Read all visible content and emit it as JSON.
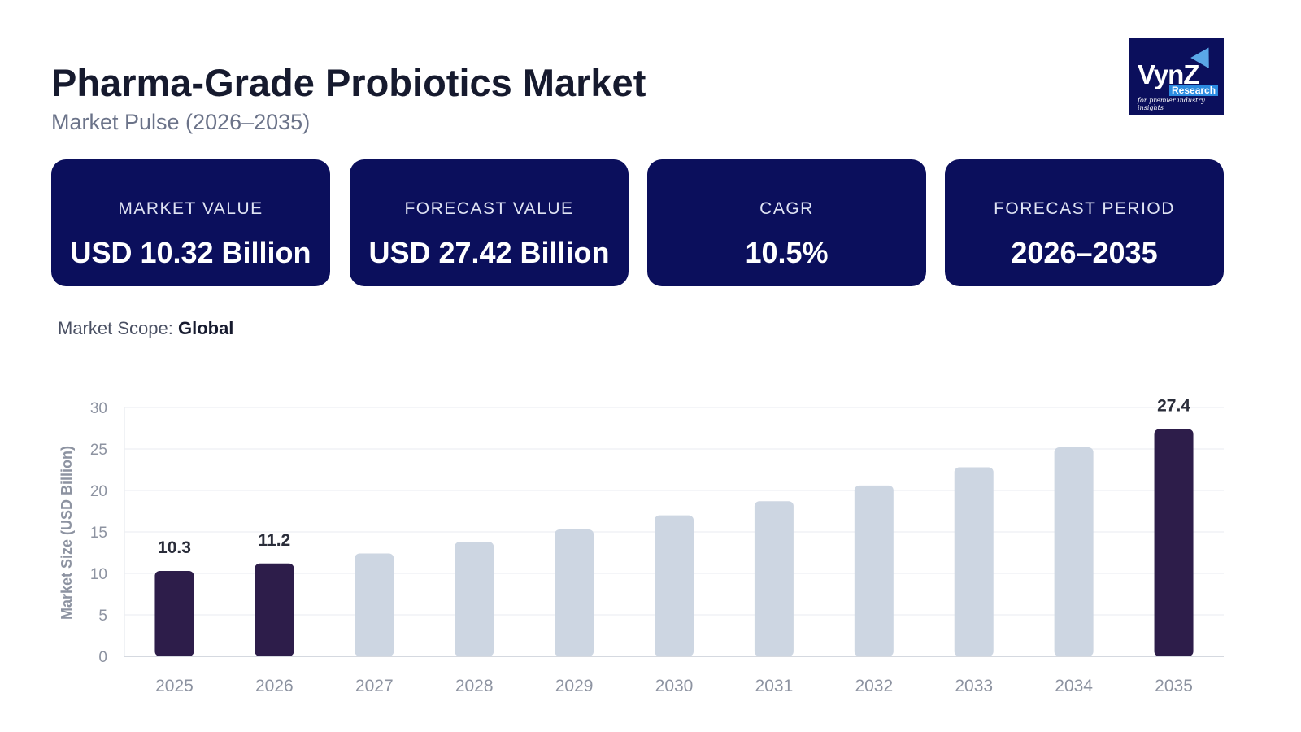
{
  "header": {
    "title": "Pharma-Grade Probiotics Market",
    "subtitle": "Market Pulse (2026–2035)"
  },
  "logo": {
    "text": "VynZ",
    "sub": "Research",
    "tagline": "for premier industry insights"
  },
  "cards": [
    {
      "label": "MARKET VALUE",
      "value": "USD 10.32 Billion"
    },
    {
      "label": "FORECAST VALUE",
      "value": "USD 27.42 Billion"
    },
    {
      "label": "CAGR",
      "value": "10.5%"
    },
    {
      "label": "FORECAST PERIOD",
      "value": "2026–2035"
    }
  ],
  "scope": {
    "label": "Market Scope:",
    "value": "Global"
  },
  "colors": {
    "navy": "#0b0f5c",
    "highlight": "#2d1d4a",
    "muted": "#cdd6e2"
  },
  "chart_data": {
    "type": "bar",
    "title": "",
    "xlabel": "",
    "ylabel": "Market Size (USD Billion)",
    "ylim": [
      0,
      30
    ],
    "yticks": [
      "0",
      "5",
      "10",
      "15",
      "20",
      "25",
      "30"
    ],
    "grid": true,
    "categories": [
      "2025",
      "2026",
      "2027",
      "2028",
      "2029",
      "2030",
      "2031",
      "2032",
      "2033",
      "2034",
      "2035"
    ],
    "values": [
      10.3,
      11.2,
      12.4,
      13.8,
      15.3,
      17.0,
      18.7,
      20.6,
      22.8,
      25.2,
      27.4
    ],
    "highlighted": [
      true,
      true,
      false,
      false,
      false,
      false,
      false,
      false,
      false,
      false,
      true
    ],
    "data_labels": [
      "10.3",
      "11.2",
      "",
      "",
      "",
      "",
      "",
      "",
      "",
      "",
      "27.4"
    ]
  }
}
